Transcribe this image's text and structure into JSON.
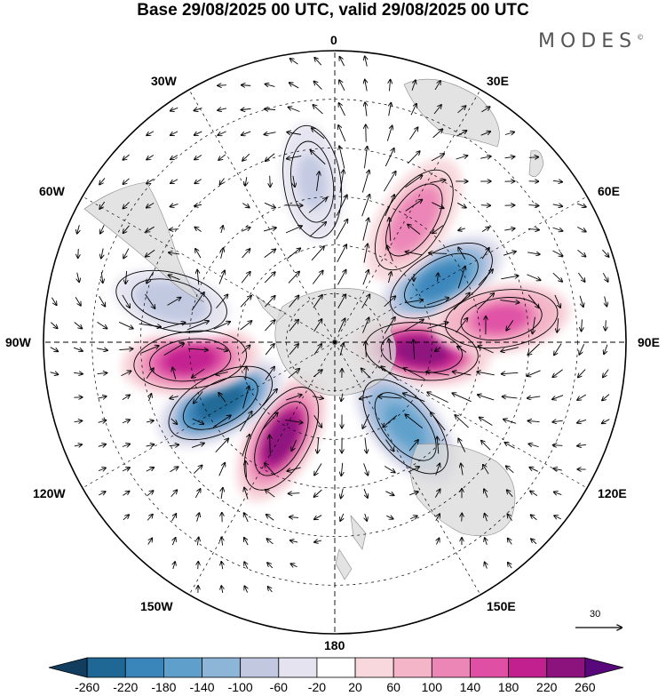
{
  "title": "Base 29/08/2025 00 UTC, valid 29/08/2025 00 UTC",
  "brand": "MODES",
  "brand_mark": "©",
  "longitude_labels": {
    "lon_0": "0",
    "lon_30e": "30E",
    "lon_60e": "60E",
    "lon_90e": "90E",
    "lon_120e": "120E",
    "lon_150e": "150E",
    "lon_180": "180",
    "lon_150w": "150W",
    "lon_120w": "120W",
    "lon_90w": "90W",
    "lon_60w": "60W",
    "lon_30w": "30W"
  },
  "reference_vector": {
    "label": "30"
  },
  "colorbar": {
    "ticks": [
      "-260",
      "-220",
      "-180",
      "-140",
      "-100",
      "-60",
      "-20",
      "20",
      "60",
      "100",
      "140",
      "180",
      "220",
      "260"
    ],
    "colors": [
      "#123d5e",
      "#1f6896",
      "#3a86bb",
      "#5ea0cb",
      "#8cb5d8",
      "#c1c8e0",
      "#e4e3ef",
      "#ffffff",
      "#f8d8dc",
      "#f3b5c7",
      "#ec86b7",
      "#df4fa4",
      "#c3208f",
      "#8c137e",
      "#58087a"
    ]
  },
  "anomaly_features": [
    {
      "name": "neg-indian-ocean",
      "lon": 60,
      "colat": 38,
      "value": -200
    },
    {
      "name": "pos-south-indian",
      "lon": 96,
      "colat": 27,
      "value": 250
    },
    {
      "name": "pos-east-indian",
      "lon": 82,
      "colat": 52,
      "value": 160
    },
    {
      "name": "neg-australia-south",
      "lon": 140,
      "colat": 34,
      "value": -170
    },
    {
      "name": "pos-south-pacific",
      "lon": -151,
      "colat": 34,
      "value": 230
    },
    {
      "name": "neg-southeast-pacific",
      "lon": -118,
      "colat": 40,
      "value": -240
    },
    {
      "name": "pos-east-pacific",
      "lon": -97,
      "colat": 45,
      "value": 200
    },
    {
      "name": "neg-south-america-west",
      "lon": -76,
      "colat": 52,
      "value": -80
    },
    {
      "name": "pos-africa-south",
      "lon": 33,
      "colat": 45,
      "value": 140
    },
    {
      "name": "neg-south-atlantic",
      "lon": -8,
      "colat": 50,
      "value": -60
    }
  ]
}
